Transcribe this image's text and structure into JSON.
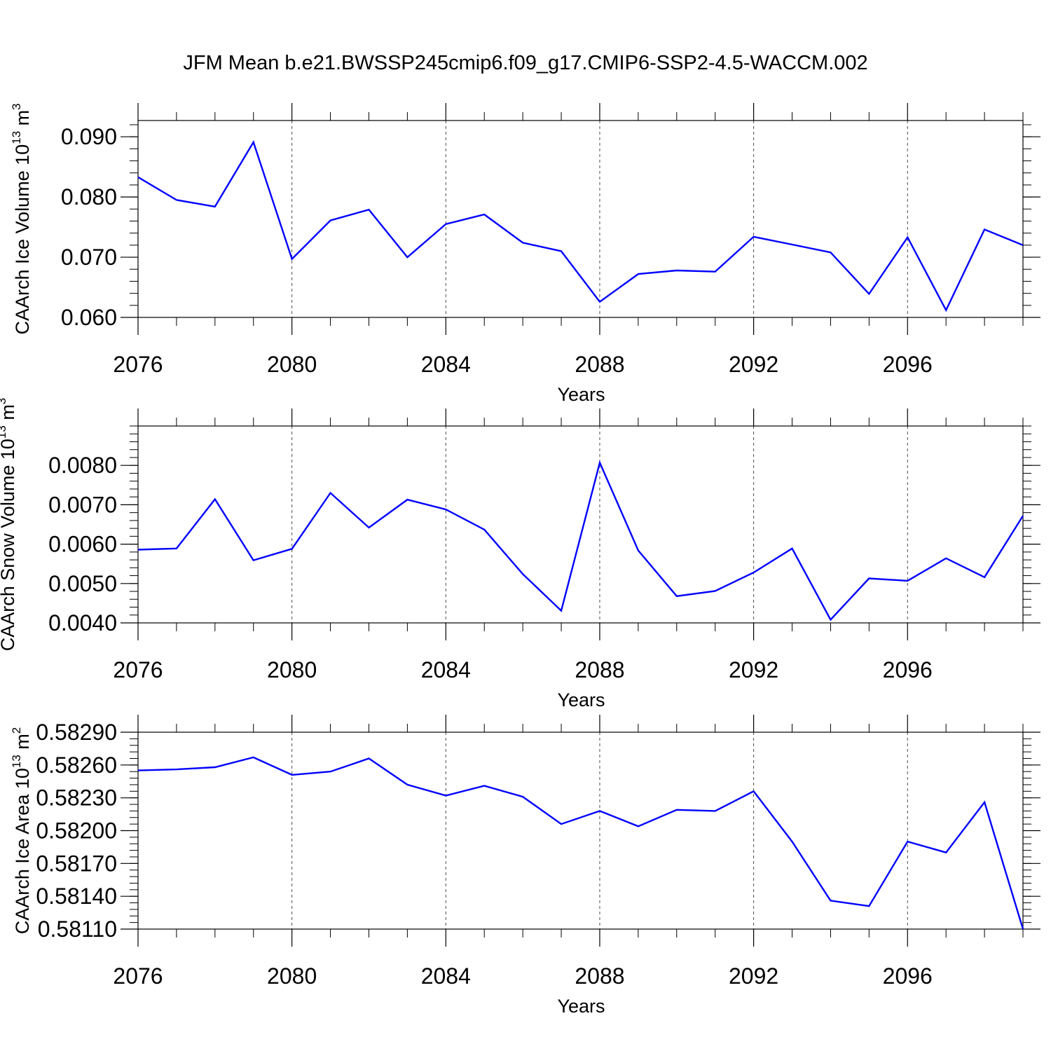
{
  "title": "JFM Mean b.e21.BWSSP245cmip6.f09_g17.CMIP6-SSP2-4.5-WACCM.002",
  "colors": {
    "line": "#0000ff",
    "axis": "#000000",
    "grid": "#000000",
    "background": "#ffffff"
  },
  "chart_data": [
    {
      "type": "line",
      "title": "JFM Mean b.e21.BWSSP245cmip6.f09_g17.CMIP6-SSP2-4.5-WACCM.002",
      "xlabel": "Years",
      "ylabel": "CAArch Ice Volume 10",
      "ylabel_exp": "13",
      "ylabel_unit": "m",
      "ylabel_unit_exp": "3",
      "xlim": [
        2076,
        2099
      ],
      "ylim": [
        0.06,
        0.0927
      ],
      "x_ticks": [
        2076,
        2080,
        2084,
        2088,
        2092,
        2096
      ],
      "x_tick_labels": [
        "2076",
        "2080",
        "2084",
        "2088",
        "2092",
        "2096"
      ],
      "y_ticks": [
        0.06,
        0.07,
        0.08,
        0.09
      ],
      "y_tick_labels": [
        "0.060",
        "0.070",
        "0.080",
        "0.090"
      ],
      "grid": "vertical dashed at major x ticks",
      "series": [
        {
          "name": "CAArch Ice Volume",
          "x": [
            2076,
            2077,
            2078,
            2079,
            2080,
            2081,
            2082,
            2083,
            2084,
            2085,
            2086,
            2087,
            2088,
            2089,
            2090,
            2091,
            2092,
            2093,
            2094,
            2095,
            2096,
            2097,
            2098,
            2099
          ],
          "values": [
            0.0833,
            0.0795,
            0.0784,
            0.0891,
            0.0697,
            0.0761,
            0.0779,
            0.07,
            0.0755,
            0.0771,
            0.0724,
            0.071,
            0.0626,
            0.0672,
            0.0678,
            0.0676,
            0.0734,
            0.0721,
            0.0708,
            0.0639,
            0.0733,
            0.0612,
            0.0746,
            0.072
          ]
        }
      ]
    },
    {
      "type": "line",
      "title": "",
      "xlabel": "Years",
      "ylabel": "CAArch Snow Volume 10",
      "ylabel_exp": "13",
      "ylabel_unit": "m",
      "ylabel_unit_exp": "3",
      "xlim": [
        2076,
        2099
      ],
      "ylim": [
        0.004,
        0.009
      ],
      "x_ticks": [
        2076,
        2080,
        2084,
        2088,
        2092,
        2096
      ],
      "x_tick_labels": [
        "2076",
        "2080",
        "2084",
        "2088",
        "2092",
        "2096"
      ],
      "y_ticks": [
        0.004,
        0.005,
        0.006,
        0.007,
        0.008
      ],
      "y_tick_labels": [
        "0.0040",
        "0.0050",
        "0.0060",
        "0.0070",
        "0.0080"
      ],
      "grid": "vertical dashed at major x ticks",
      "series": [
        {
          "name": "CAArch Snow Volume",
          "x": [
            2076,
            2077,
            2078,
            2079,
            2080,
            2081,
            2082,
            2083,
            2084,
            2085,
            2086,
            2087,
            2088,
            2089,
            2090,
            2091,
            2092,
            2093,
            2094,
            2095,
            2096,
            2097,
            2098,
            2099
          ],
          "values": [
            0.00586,
            0.00589,
            0.00714,
            0.00559,
            0.00588,
            0.0073,
            0.00642,
            0.00713,
            0.00688,
            0.00637,
            0.00524,
            0.00431,
            0.00807,
            0.00584,
            0.00468,
            0.00481,
            0.00528,
            0.00589,
            0.00408,
            0.00513,
            0.00507,
            0.00564,
            0.00516,
            0.00672
          ]
        }
      ]
    },
    {
      "type": "line",
      "title": "",
      "xlabel": "Years",
      "ylabel": "CAArch Ice Area 10",
      "ylabel_exp": "13",
      "ylabel_unit": "m",
      "ylabel_unit_exp": "2",
      "xlim": [
        2076,
        2099
      ],
      "ylim": [
        0.5811,
        0.5829
      ],
      "x_ticks": [
        2076,
        2080,
        2084,
        2088,
        2092,
        2096
      ],
      "x_tick_labels": [
        "2076",
        "2080",
        "2084",
        "2088",
        "2092",
        "2096"
      ],
      "y_ticks": [
        0.5811,
        0.5814,
        0.5817,
        0.582,
        0.5823,
        0.5826,
        0.5829
      ],
      "y_tick_labels": [
        "0.58110",
        "0.58140",
        "0.58170",
        "0.58200",
        "0.58230",
        "0.58260",
        "0.58290"
      ],
      "grid": "vertical dashed at major x ticks",
      "series": [
        {
          "name": "CAArch Ice Area",
          "x": [
            2076,
            2077,
            2078,
            2079,
            2080,
            2081,
            2082,
            2083,
            2084,
            2085,
            2086,
            2087,
            2088,
            2089,
            2090,
            2091,
            2092,
            2093,
            2094,
            2095,
            2096,
            2097,
            2098,
            2099
          ],
          "values": [
            0.58255,
            0.58256,
            0.58258,
            0.58267,
            0.58251,
            0.58254,
            0.58266,
            0.58242,
            0.58232,
            0.58241,
            0.58231,
            0.58206,
            0.58218,
            0.58204,
            0.58219,
            0.58218,
            0.58236,
            0.5819,
            0.58136,
            0.58131,
            0.5819,
            0.5818,
            0.58226,
            0.5811
          ]
        }
      ]
    }
  ]
}
